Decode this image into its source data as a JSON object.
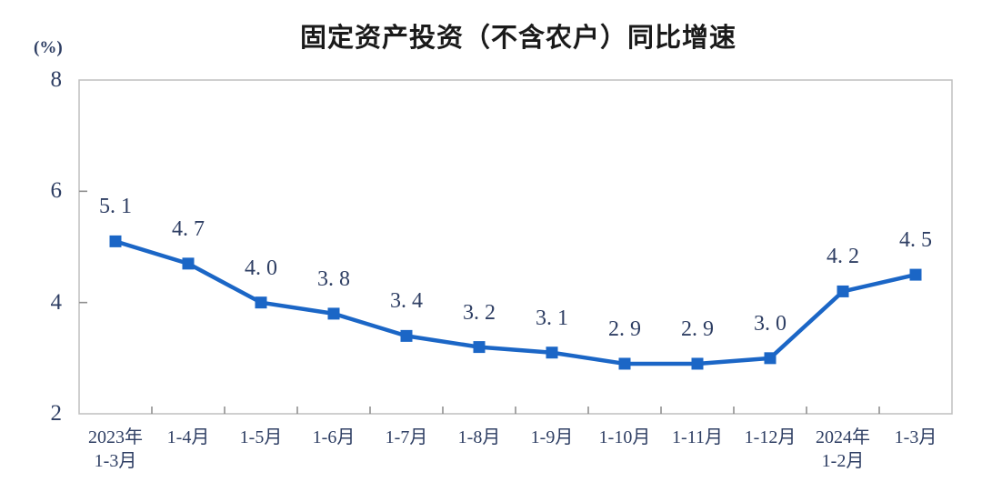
{
  "chart_data": {
    "type": "line",
    "title": "固定资产投资（不含农户）同比增速",
    "unit_label": "(%)",
    "categories": [
      "2023年\n1-3月",
      "1-4月",
      "1-5月",
      "1-6月",
      "1-7月",
      "1-8月",
      "1-9月",
      "1-10月",
      "1-11月",
      "1-12月",
      "2024年\n1-2月",
      "1-3月"
    ],
    "values": [
      5.1,
      4.7,
      4.0,
      3.8,
      3.4,
      3.2,
      3.1,
      2.9,
      2.9,
      3.0,
      4.2,
      4.5
    ],
    "point_labels": [
      "5. 1",
      "4. 7",
      "4. 0",
      "3. 8",
      "3. 4",
      "3. 2",
      "3. 1",
      "2. 9",
      "2. 9",
      "3. 0",
      "4. 2",
      "4. 5"
    ],
    "xlabel": "",
    "ylabel": "",
    "ylim": [
      2,
      8
    ],
    "y_ticks": [
      8,
      6,
      4,
      2
    ],
    "marker": "square",
    "grid": false,
    "legend": false,
    "colors": {
      "line": "#1B66C6",
      "marker": "#1B66C6",
      "axis_text": "#2E3E63",
      "data_label_text": "#2E3E63",
      "title_text": "#1A1A1A",
      "frame": "#BFBFBF",
      "tick": "#8F8F8F",
      "background": "#FFFFFF"
    }
  }
}
